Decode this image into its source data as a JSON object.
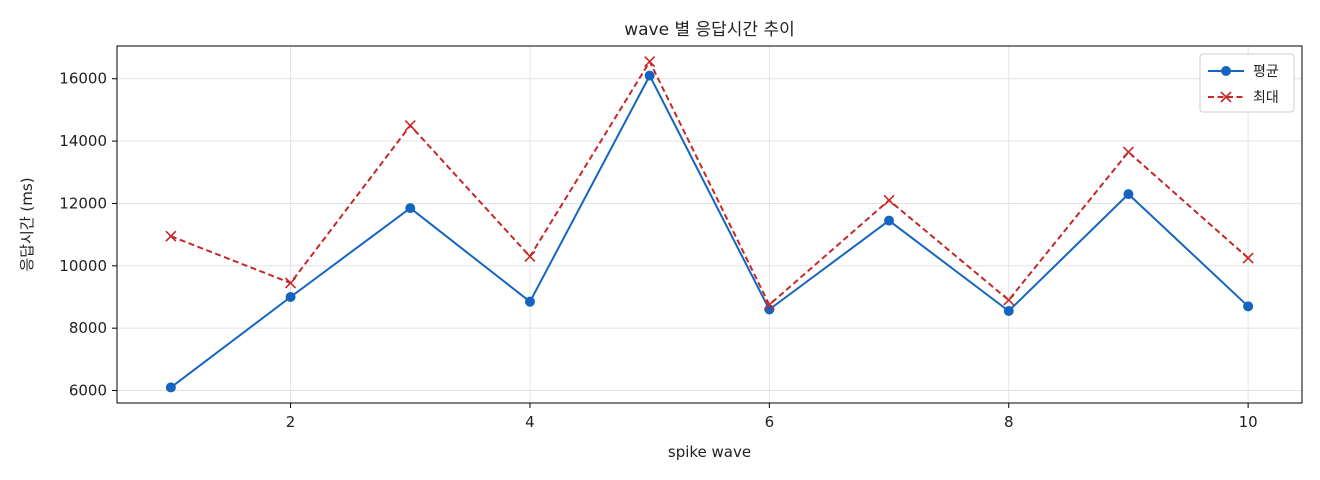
{
  "chart_data": {
    "type": "line",
    "title": "wave 별 응답시간 추이",
    "xlabel": "spike wave",
    "ylabel": "응답시간 (ms)",
    "x": [
      1,
      2,
      3,
      4,
      5,
      6,
      7,
      8,
      9,
      10
    ],
    "xticks": [
      2,
      4,
      6,
      8,
      10
    ],
    "yticks": [
      6000,
      8000,
      10000,
      12000,
      14000,
      16000
    ],
    "xlim": [
      0.55,
      10.45
    ],
    "ylim": [
      5600,
      17050
    ],
    "grid": true,
    "legend_position": "top-right",
    "series": [
      {
        "name": "평균",
        "values": [
          6100,
          9000,
          11850,
          8850,
          16100,
          8600,
          11450,
          8550,
          12300,
          8700
        ],
        "color": "#1565c0",
        "marker": "circle",
        "line": "solid"
      },
      {
        "name": "최대",
        "values": [
          10950,
          9450,
          14500,
          10300,
          16550,
          8750,
          12100,
          8900,
          13650,
          10250
        ],
        "color": "#c62828",
        "marker": "x",
        "line": "dashed"
      }
    ]
  }
}
